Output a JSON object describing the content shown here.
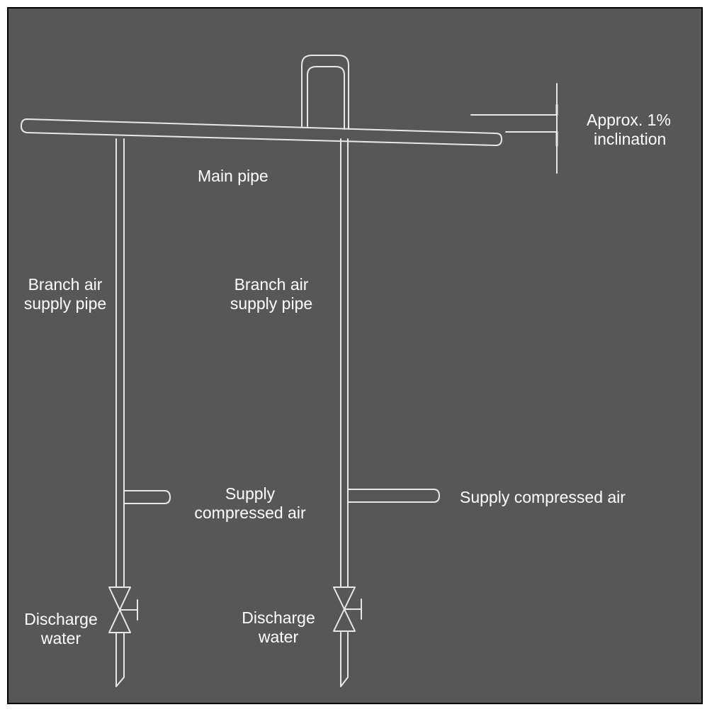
{
  "labels": {
    "inclination": [
      "Approx. 1%",
      "inclination"
    ],
    "main_pipe": "Main pipe",
    "branch_left": [
      "Branch air",
      "supply pipe"
    ],
    "branch_right": [
      "Branch air",
      "supply pipe"
    ],
    "supply_left": [
      "Supply",
      "compressed air"
    ],
    "supply_right": "Supply compressed air",
    "discharge_left": [
      "Discharge",
      "water"
    ],
    "discharge_right": [
      "Discharge",
      "water"
    ]
  },
  "colors": {
    "background": "#575757",
    "line": "#e8e8e8",
    "text": "#ffffff"
  }
}
